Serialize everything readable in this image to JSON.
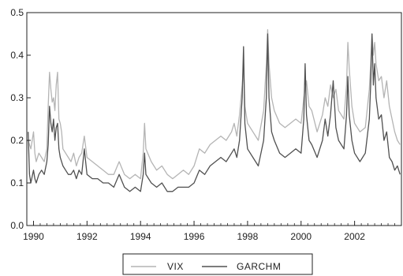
{
  "chart_data": {
    "type": "line",
    "title": "",
    "xlabel": "",
    "ylabel": "",
    "xlim": [
      1989.75,
      2003.75
    ],
    "ylim": [
      0.0,
      0.5
    ],
    "x_ticks": [
      1990,
      1992,
      1994,
      1996,
      1998,
      2000,
      2002
    ],
    "x_tick_labels": [
      "1990",
      "1992",
      "1994",
      "1996",
      "1998",
      "2000",
      "2002"
    ],
    "y_ticks": [
      0.0,
      0.1,
      0.2,
      0.3,
      0.4,
      0.5
    ],
    "y_tick_labels": [
      "0.0",
      "0.1",
      "0.2",
      "0.3",
      "0.4",
      "0.5"
    ],
    "grid": false,
    "legend_position": "bottom-center",
    "series": [
      {
        "name": "VIX",
        "color": "#b4b4b4",
        "points": [
          [
            1989.8,
            0.2
          ],
          [
            1989.9,
            0.18
          ],
          [
            1990.0,
            0.22
          ],
          [
            1990.05,
            0.17
          ],
          [
            1990.1,
            0.15
          ],
          [
            1990.2,
            0.17
          ],
          [
            1990.3,
            0.16
          ],
          [
            1990.4,
            0.15
          ],
          [
            1990.5,
            0.18
          ],
          [
            1990.55,
            0.28
          ],
          [
            1990.6,
            0.36
          ],
          [
            1990.65,
            0.32
          ],
          [
            1990.7,
            0.29
          ],
          [
            1990.75,
            0.3
          ],
          [
            1990.8,
            0.27
          ],
          [
            1990.85,
            0.33
          ],
          [
            1990.9,
            0.36
          ],
          [
            1990.95,
            0.25
          ],
          [
            1991.0,
            0.24
          ],
          [
            1991.05,
            0.22
          ],
          [
            1991.1,
            0.18
          ],
          [
            1991.2,
            0.17
          ],
          [
            1991.3,
            0.16
          ],
          [
            1991.4,
            0.15
          ],
          [
            1991.5,
            0.17
          ],
          [
            1991.6,
            0.14
          ],
          [
            1991.7,
            0.16
          ],
          [
            1991.8,
            0.17
          ],
          [
            1991.9,
            0.21
          ],
          [
            1992.0,
            0.16
          ],
          [
            1992.2,
            0.15
          ],
          [
            1992.4,
            0.14
          ],
          [
            1992.6,
            0.13
          ],
          [
            1992.8,
            0.12
          ],
          [
            1993.0,
            0.12
          ],
          [
            1993.2,
            0.15
          ],
          [
            1993.4,
            0.12
          ],
          [
            1993.6,
            0.11
          ],
          [
            1993.8,
            0.12
          ],
          [
            1994.0,
            0.11
          ],
          [
            1994.1,
            0.17
          ],
          [
            1994.15,
            0.24
          ],
          [
            1994.2,
            0.18
          ],
          [
            1994.4,
            0.15
          ],
          [
            1994.6,
            0.13
          ],
          [
            1994.8,
            0.14
          ],
          [
            1995.0,
            0.12
          ],
          [
            1995.2,
            0.11
          ],
          [
            1995.4,
            0.12
          ],
          [
            1995.6,
            0.13
          ],
          [
            1995.8,
            0.12
          ],
          [
            1996.0,
            0.14
          ],
          [
            1996.2,
            0.18
          ],
          [
            1996.4,
            0.17
          ],
          [
            1996.6,
            0.19
          ],
          [
            1996.8,
            0.2
          ],
          [
            1997.0,
            0.21
          ],
          [
            1997.2,
            0.2
          ],
          [
            1997.4,
            0.22
          ],
          [
            1997.5,
            0.24
          ],
          [
            1997.6,
            0.21
          ],
          [
            1997.7,
            0.26
          ],
          [
            1997.8,
            0.33
          ],
          [
            1997.85,
            0.38
          ],
          [
            1997.9,
            0.28
          ],
          [
            1998.0,
            0.24
          ],
          [
            1998.2,
            0.22
          ],
          [
            1998.4,
            0.2
          ],
          [
            1998.6,
            0.27
          ],
          [
            1998.7,
            0.38
          ],
          [
            1998.75,
            0.46
          ],
          [
            1998.8,
            0.38
          ],
          [
            1998.9,
            0.3
          ],
          [
            1999.0,
            0.27
          ],
          [
            1999.2,
            0.24
          ],
          [
            1999.4,
            0.23
          ],
          [
            1999.6,
            0.24
          ],
          [
            1999.8,
            0.25
          ],
          [
            2000.0,
            0.24
          ],
          [
            2000.1,
            0.3
          ],
          [
            2000.2,
            0.34
          ],
          [
            2000.3,
            0.28
          ],
          [
            2000.4,
            0.27
          ],
          [
            2000.6,
            0.22
          ],
          [
            2000.8,
            0.26
          ],
          [
            2000.9,
            0.3
          ],
          [
            2001.0,
            0.28
          ],
          [
            2001.1,
            0.33
          ],
          [
            2001.2,
            0.3
          ],
          [
            2001.3,
            0.32
          ],
          [
            2001.4,
            0.27
          ],
          [
            2001.6,
            0.25
          ],
          [
            2001.7,
            0.33
          ],
          [
            2001.75,
            0.43
          ],
          [
            2001.8,
            0.37
          ],
          [
            2001.9,
            0.28
          ],
          [
            2002.0,
            0.24
          ],
          [
            2002.2,
            0.22
          ],
          [
            2002.4,
            0.23
          ],
          [
            2002.55,
            0.32
          ],
          [
            2002.6,
            0.38
          ],
          [
            2002.65,
            0.45
          ],
          [
            2002.7,
            0.4
          ],
          [
            2002.75,
            0.43
          ],
          [
            2002.8,
            0.38
          ],
          [
            2002.9,
            0.34
          ],
          [
            2003.0,
            0.35
          ],
          [
            2003.1,
            0.3
          ],
          [
            2003.2,
            0.34
          ],
          [
            2003.3,
            0.28
          ],
          [
            2003.4,
            0.25
          ],
          [
            2003.5,
            0.22
          ],
          [
            2003.6,
            0.2
          ],
          [
            2003.7,
            0.19
          ]
        ]
      },
      {
        "name": "GARCHM",
        "color": "#505050",
        "points": [
          [
            1989.8,
            0.22
          ],
          [
            1989.85,
            0.12
          ],
          [
            1989.9,
            0.1
          ],
          [
            1990.0,
            0.13
          ],
          [
            1990.05,
            0.11
          ],
          [
            1990.1,
            0.1
          ],
          [
            1990.2,
            0.12
          ],
          [
            1990.3,
            0.13
          ],
          [
            1990.4,
            0.12
          ],
          [
            1990.5,
            0.15
          ],
          [
            1990.55,
            0.19
          ],
          [
            1990.6,
            0.28
          ],
          [
            1990.65,
            0.24
          ],
          [
            1990.7,
            0.22
          ],
          [
            1990.75,
            0.25
          ],
          [
            1990.8,
            0.2
          ],
          [
            1990.85,
            0.23
          ],
          [
            1990.9,
            0.24
          ],
          [
            1990.95,
            0.18
          ],
          [
            1991.0,
            0.16
          ],
          [
            1991.1,
            0.14
          ],
          [
            1991.2,
            0.13
          ],
          [
            1991.3,
            0.12
          ],
          [
            1991.4,
            0.12
          ],
          [
            1991.5,
            0.13
          ],
          [
            1991.6,
            0.11
          ],
          [
            1991.7,
            0.13
          ],
          [
            1991.8,
            0.12
          ],
          [
            1991.9,
            0.18
          ],
          [
            1992.0,
            0.12
          ],
          [
            1992.2,
            0.11
          ],
          [
            1992.4,
            0.11
          ],
          [
            1992.6,
            0.1
          ],
          [
            1992.8,
            0.1
          ],
          [
            1993.0,
            0.09
          ],
          [
            1993.2,
            0.12
          ],
          [
            1993.4,
            0.09
          ],
          [
            1993.6,
            0.08
          ],
          [
            1993.8,
            0.09
          ],
          [
            1994.0,
            0.08
          ],
          [
            1994.1,
            0.12
          ],
          [
            1994.15,
            0.17
          ],
          [
            1994.2,
            0.12
          ],
          [
            1994.4,
            0.1
          ],
          [
            1994.6,
            0.09
          ],
          [
            1994.8,
            0.1
          ],
          [
            1995.0,
            0.08
          ],
          [
            1995.2,
            0.08
          ],
          [
            1995.4,
            0.09
          ],
          [
            1995.6,
            0.09
          ],
          [
            1995.8,
            0.09
          ],
          [
            1996.0,
            0.1
          ],
          [
            1996.2,
            0.13
          ],
          [
            1996.4,
            0.12
          ],
          [
            1996.6,
            0.14
          ],
          [
            1996.8,
            0.15
          ],
          [
            1997.0,
            0.16
          ],
          [
            1997.2,
            0.15
          ],
          [
            1997.4,
            0.17
          ],
          [
            1997.5,
            0.18
          ],
          [
            1997.6,
            0.16
          ],
          [
            1997.7,
            0.2
          ],
          [
            1997.8,
            0.3
          ],
          [
            1997.85,
            0.42
          ],
          [
            1997.9,
            0.24
          ],
          [
            1998.0,
            0.18
          ],
          [
            1998.2,
            0.16
          ],
          [
            1998.4,
            0.14
          ],
          [
            1998.6,
            0.2
          ],
          [
            1998.7,
            0.3
          ],
          [
            1998.75,
            0.45
          ],
          [
            1998.8,
            0.3
          ],
          [
            1998.9,
            0.22
          ],
          [
            1999.0,
            0.2
          ],
          [
            1999.2,
            0.17
          ],
          [
            1999.4,
            0.16
          ],
          [
            1999.6,
            0.17
          ],
          [
            1999.8,
            0.18
          ],
          [
            2000.0,
            0.17
          ],
          [
            2000.1,
            0.25
          ],
          [
            2000.15,
            0.38
          ],
          [
            2000.2,
            0.26
          ],
          [
            2000.3,
            0.2
          ],
          [
            2000.4,
            0.19
          ],
          [
            2000.6,
            0.16
          ],
          [
            2000.8,
            0.2
          ],
          [
            2000.9,
            0.25
          ],
          [
            2001.0,
            0.21
          ],
          [
            2001.1,
            0.26
          ],
          [
            2001.2,
            0.34
          ],
          [
            2001.3,
            0.23
          ],
          [
            2001.4,
            0.2
          ],
          [
            2001.6,
            0.18
          ],
          [
            2001.7,
            0.26
          ],
          [
            2001.75,
            0.35
          ],
          [
            2001.8,
            0.26
          ],
          [
            2001.9,
            0.2
          ],
          [
            2002.0,
            0.17
          ],
          [
            2002.2,
            0.15
          ],
          [
            2002.4,
            0.17
          ],
          [
            2002.55,
            0.25
          ],
          [
            2002.6,
            0.33
          ],
          [
            2002.65,
            0.45
          ],
          [
            2002.7,
            0.33
          ],
          [
            2002.75,
            0.38
          ],
          [
            2002.8,
            0.3
          ],
          [
            2002.9,
            0.25
          ],
          [
            2003.0,
            0.26
          ],
          [
            2003.1,
            0.2
          ],
          [
            2003.2,
            0.22
          ],
          [
            2003.3,
            0.16
          ],
          [
            2003.4,
            0.15
          ],
          [
            2003.5,
            0.13
          ],
          [
            2003.6,
            0.14
          ],
          [
            2003.7,
            0.12
          ]
        ]
      }
    ]
  }
}
